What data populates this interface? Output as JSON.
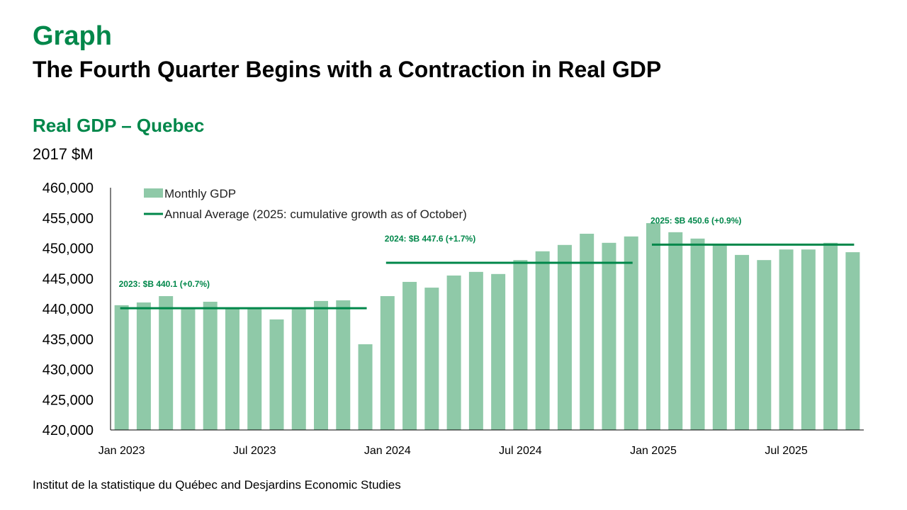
{
  "header": {
    "kicker": "Graph",
    "title": "The Fourth Quarter Begins with a Contraction in Real GDP"
  },
  "chart_data": {
    "type": "bar",
    "title": "Real GDP – Quebec",
    "ylabel": "2017 $M",
    "ylim": [
      420000,
      460000
    ],
    "yticks": [
      420000,
      425000,
      430000,
      435000,
      440000,
      445000,
      450000,
      455000,
      460000
    ],
    "ytick_labels": [
      "420,000",
      "425,000",
      "430,000",
      "435,000",
      "440,000",
      "445,000",
      "450,000",
      "455,000",
      "460,000"
    ],
    "x_tick_labels": [
      {
        "index": 0,
        "label": "Jan 2023"
      },
      {
        "index": 6,
        "label": "Jul 2023"
      },
      {
        "index": 12,
        "label": "Jan 2024"
      },
      {
        "index": 18,
        "label": "Jul 2024"
      },
      {
        "index": 24,
        "label": "Jan 2025"
      },
      {
        "index": 30,
        "label": "Jul 2025"
      }
    ],
    "categories": [
      "2023-01",
      "2023-02",
      "2023-03",
      "2023-04",
      "2023-05",
      "2023-06",
      "2023-07",
      "2023-08",
      "2023-09",
      "2023-10",
      "2023-11",
      "2023-12",
      "2024-01",
      "2024-02",
      "2024-03",
      "2024-04",
      "2024-05",
      "2024-06",
      "2024-07",
      "2024-08",
      "2024-09",
      "2024-10",
      "2024-11",
      "2024-12",
      "2025-01",
      "2025-02",
      "2025-03",
      "2025-04",
      "2025-05",
      "2025-06",
      "2025-07",
      "2025-08",
      "2025-09",
      "2025-10"
    ],
    "series": [
      {
        "name": "Monthly GDP",
        "type": "bar",
        "color": "#8fc9a8",
        "values": [
          440600,
          441050,
          442100,
          440100,
          441170,
          440100,
          440100,
          438250,
          440100,
          441300,
          441400,
          434150,
          442100,
          444450,
          443500,
          445500,
          446100,
          445750,
          448050,
          449500,
          450550,
          452400,
          450900,
          451950,
          454150,
          452650,
          451600,
          450600,
          448900,
          448050,
          449800,
          449800,
          450900,
          449350
        ]
      },
      {
        "name": "Annual Average (2025: cumulative growth as of October)",
        "type": "line",
        "color": "#00874a",
        "segments": [
          {
            "start": 0,
            "end": 11,
            "value": 440100,
            "label": "2023: $B 440.1 (+0.7%)"
          },
          {
            "start": 12,
            "end": 23,
            "value": 447600,
            "label": "2024: $B 447.6 (+1.7%)"
          },
          {
            "start": 24,
            "end": 33,
            "value": 450600,
            "label": "2025: $B 450.6 (+0.9%)"
          }
        ]
      }
    ],
    "legend": "top-left",
    "grid": false
  },
  "footer": {
    "source": "Institut de la statistique du Québec and Desjardins Economic Studies"
  }
}
